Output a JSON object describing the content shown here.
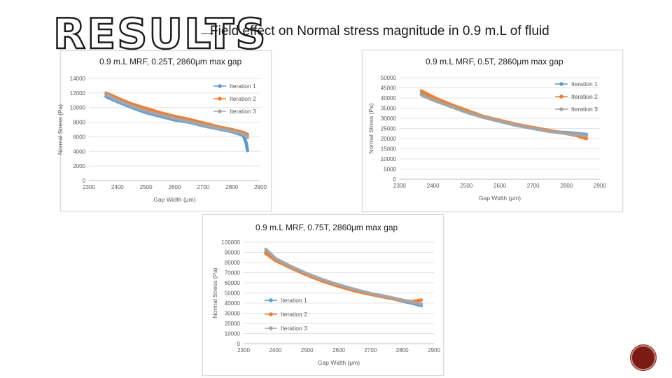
{
  "slide": {
    "heading": "RESULTS",
    "subtitle": "Field effect on Normal stress magnitude in 0.9 m.L of fluid"
  },
  "chart_data": [
    {
      "type": "scatter",
      "title": "0.9 m.L MRF, 0.25T, 2860μm max gap",
      "xlabel": "Gap Width (μm)",
      "ylabel": "Normal Stress (Pa)",
      "xlim": [
        2300,
        2900
      ],
      "ylim": [
        0,
        14000
      ],
      "xticks": [
        2300,
        2400,
        2500,
        2600,
        2700,
        2800,
        2900
      ],
      "yticks": [
        0,
        2000,
        4000,
        6000,
        8000,
        10000,
        12000,
        14000
      ],
      "legend_position": "top-right",
      "series": [
        {
          "name": "Iteration 1",
          "color": "#5b9bd5",
          "x": [
            2360,
            2400,
            2450,
            2500,
            2550,
            2600,
            2650,
            2700,
            2750,
            2800,
            2840,
            2850,
            2855
          ],
          "y": [
            11500,
            10800,
            10000,
            9300,
            8800,
            8300,
            8000,
            7500,
            7100,
            6700,
            6200,
            5200,
            4100
          ]
        },
        {
          "name": "Iteration 2",
          "color": "#ed7d31",
          "x": [
            2360,
            2400,
            2450,
            2500,
            2550,
            2600,
            2650,
            2700,
            2750,
            2800,
            2840,
            2850,
            2855
          ],
          "y": [
            12000,
            11300,
            10500,
            9900,
            9300,
            8800,
            8400,
            7900,
            7400,
            7000,
            6600,
            6400,
            6300
          ]
        },
        {
          "name": "Iteration 3",
          "color": "#a5a5a5",
          "x": [
            2360,
            2400,
            2450,
            2500,
            2550,
            2600,
            2650,
            2700,
            2750,
            2800,
            2840,
            2850,
            2855
          ],
          "y": [
            11800,
            11000,
            10200,
            9500,
            9000,
            8500,
            8100,
            7600,
            7200,
            6800,
            6400,
            6100,
            5900
          ]
        }
      ]
    },
    {
      "type": "scatter",
      "title": "0.9 m.L MRF, 0.5T, 2860μm max gap",
      "xlabel": "Gap Width (μm)",
      "ylabel": "Normal Stress (Pa)",
      "xlim": [
        2300,
        2900
      ],
      "ylim": [
        0,
        50000
      ],
      "xticks": [
        2300,
        2400,
        2500,
        2600,
        2700,
        2800,
        2900
      ],
      "yticks": [
        0,
        5000,
        10000,
        15000,
        20000,
        25000,
        30000,
        35000,
        40000,
        45000,
        50000
      ],
      "legend_position": "top-right",
      "series": [
        {
          "name": "Iteration 1",
          "color": "#5b9bd5",
          "x": [
            2365,
            2400,
            2450,
            2500,
            2550,
            2600,
            2650,
            2700,
            2750,
            2800,
            2830,
            2860
          ],
          "y": [
            42000,
            39000,
            36000,
            33000,
            30500,
            28500,
            26500,
            25000,
            23500,
            23000,
            22500,
            22000
          ]
        },
        {
          "name": "Iteration 2",
          "color": "#ed7d31",
          "x": [
            2365,
            2400,
            2450,
            2500,
            2550,
            2600,
            2650,
            2700,
            2750,
            2800,
            2830,
            2860
          ],
          "y": [
            43500,
            40500,
            37000,
            34000,
            31000,
            29000,
            27000,
            25500,
            24000,
            22500,
            21500,
            20000
          ]
        },
        {
          "name": "Iteration 3",
          "color": "#a5a5a5",
          "x": [
            2365,
            2400,
            2450,
            2500,
            2550,
            2600,
            2650,
            2700,
            2750,
            2800,
            2830,
            2860
          ],
          "y": [
            41500,
            39000,
            36000,
            33000,
            30500,
            28500,
            26500,
            25000,
            23500,
            22500,
            22000,
            21500
          ]
        }
      ]
    },
    {
      "type": "scatter",
      "title": "0.9 m.L MRF, 0.75T, 2860μm max gap",
      "xlabel": "Gap Width (μm)",
      "ylabel": "Normal Stress (Pa)",
      "xlim": [
        2300,
        2900
      ],
      "ylim": [
        0,
        100000
      ],
      "xticks": [
        2300,
        2400,
        2500,
        2600,
        2700,
        2800,
        2900
      ],
      "yticks": [
        0,
        10000,
        20000,
        30000,
        40000,
        50000,
        60000,
        70000,
        80000,
        90000,
        100000
      ],
      "legend_position": "left",
      "series": [
        {
          "name": "Iteration 1",
          "color": "#5b9bd5",
          "x": [
            2370,
            2400,
            2450,
            2500,
            2550,
            2600,
            2650,
            2700,
            2750,
            2800,
            2830,
            2860
          ],
          "y": [
            90000,
            83000,
            75000,
            68000,
            62000,
            57000,
            53000,
            49000,
            46000,
            42000,
            40000,
            37500
          ]
        },
        {
          "name": "Iteration 2",
          "color": "#ed7d31",
          "x": [
            2370,
            2400,
            2450,
            2500,
            2550,
            2600,
            2650,
            2700,
            2750,
            2800,
            2830,
            2860
          ],
          "y": [
            89000,
            82000,
            74500,
            67500,
            61500,
            56500,
            52000,
            48500,
            45500,
            42500,
            41500,
            43000
          ]
        },
        {
          "name": "Iteration 3",
          "color": "#a5a5a5",
          "x": [
            2370,
            2400,
            2450,
            2500,
            2550,
            2600,
            2650,
            2700,
            2750,
            2800,
            2830,
            2860
          ],
          "y": [
            93000,
            84000,
            76000,
            69000,
            63000,
            58000,
            53500,
            49500,
            46500,
            43000,
            41000,
            39000
          ]
        }
      ]
    }
  ]
}
